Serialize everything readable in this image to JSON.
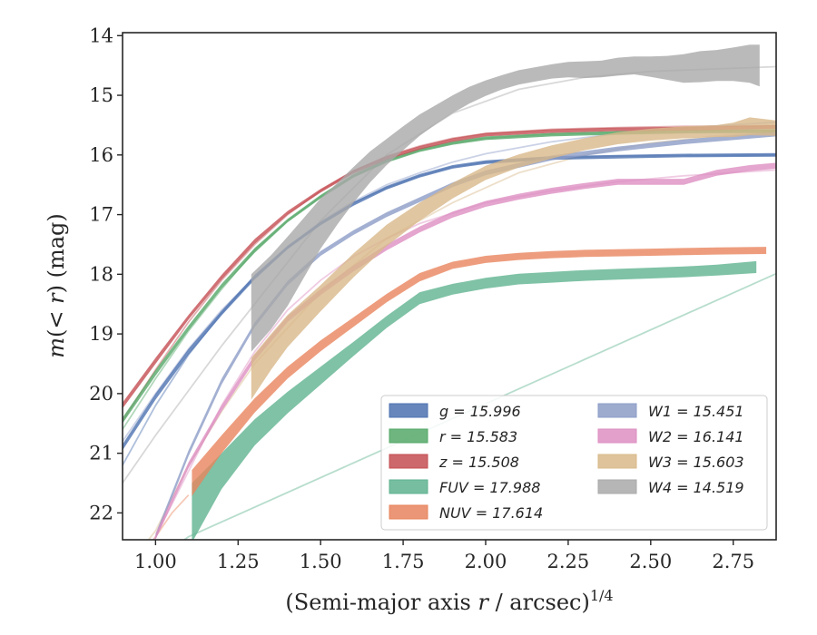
{
  "chart_data": {
    "type": "line",
    "xlabel": "(Semi-major axis r / arcsec)^1/4",
    "ylabel": "m(< r) (mag)",
    "xlim": [
      0.9,
      2.88
    ],
    "ylim": [
      22.45,
      13.95
    ],
    "y_inverted": true,
    "grid": false,
    "legend_placement": "lower-right",
    "x_ticks": [
      "1.00",
      "1.25",
      "1.50",
      "1.75",
      "2.00",
      "2.25",
      "2.50",
      "2.75"
    ],
    "y_ticks": [
      "14",
      "15",
      "16",
      "17",
      "18",
      "19",
      "20",
      "21",
      "22"
    ],
    "series": [
      {
        "name": "g = 15.996",
        "band": "g",
        "total": "15.996",
        "color": "#4c72b0",
        "model_x": [
          0.9,
          1.0,
          1.1,
          1.2,
          1.3,
          1.4,
          1.5,
          1.6,
          1.7,
          1.8,
          1.9,
          2.0,
          2.2,
          2.4,
          2.6,
          2.88
        ],
        "model_y": [
          21.2,
          20.2,
          19.35,
          18.65,
          18.05,
          17.55,
          17.15,
          16.8,
          16.55,
          16.35,
          16.2,
          16.12,
          16.05,
          16.02,
          16.01,
          16.0
        ],
        "x": [
          0.9,
          1.0,
          1.1,
          1.2,
          1.3,
          1.4,
          1.5,
          1.6,
          1.7,
          1.8,
          1.9,
          2.0,
          2.2,
          2.4,
          2.6,
          2.88
        ],
        "y": [
          20.9,
          20.05,
          19.3,
          18.65,
          18.05,
          17.55,
          17.15,
          16.82,
          16.55,
          16.35,
          16.2,
          16.12,
          16.05,
          16.03,
          16.01,
          16.0
        ],
        "err": [
          0.05,
          0.05,
          0.05,
          0.04,
          0.04,
          0.03,
          0.03,
          0.03,
          0.03,
          0.03,
          0.03,
          0.03,
          0.03,
          0.03,
          0.03,
          0.03
        ]
      },
      {
        "name": "r = 15.583",
        "band": "r",
        "total": "15.583",
        "color": "#55a868",
        "model_x": [
          0.9,
          1.0,
          1.1,
          1.2,
          1.3,
          1.4,
          1.5,
          1.6,
          1.7,
          1.8,
          1.9,
          2.0,
          2.2,
          2.4,
          2.6,
          2.88
        ],
        "model_y": [
          20.6,
          19.75,
          18.95,
          18.25,
          17.6,
          17.1,
          16.7,
          16.35,
          16.1,
          15.92,
          15.8,
          15.72,
          15.65,
          15.62,
          15.6,
          15.58
        ],
        "x": [
          0.9,
          1.0,
          1.1,
          1.2,
          1.3,
          1.4,
          1.5,
          1.6,
          1.7,
          1.8,
          1.9,
          2.0,
          2.2,
          2.4,
          2.6,
          2.88
        ],
        "y": [
          20.45,
          19.65,
          18.9,
          18.2,
          17.6,
          17.1,
          16.7,
          16.35,
          16.1,
          15.92,
          15.8,
          15.72,
          15.66,
          15.63,
          15.61,
          15.6
        ],
        "err": [
          0.05,
          0.05,
          0.04,
          0.04,
          0.04,
          0.03,
          0.03,
          0.03,
          0.03,
          0.03,
          0.03,
          0.03,
          0.03,
          0.03,
          0.03,
          0.03
        ]
      },
      {
        "name": "z = 15.508",
        "band": "z",
        "total": "15.508",
        "color": "#c44e52",
        "model_x": [
          0.9,
          1.0,
          1.1,
          1.2,
          1.3,
          1.4,
          1.5,
          1.6,
          1.7,
          1.8,
          1.9,
          2.0,
          2.2,
          2.4,
          2.6,
          2.88
        ],
        "model_y": [
          20.45,
          19.6,
          18.8,
          18.1,
          17.5,
          17.0,
          16.6,
          16.27,
          16.02,
          15.85,
          15.72,
          15.64,
          15.57,
          15.54,
          15.52,
          15.51
        ],
        "x": [
          0.9,
          1.0,
          1.1,
          1.2,
          1.3,
          1.4,
          1.5,
          1.6,
          1.7,
          1.8,
          1.9,
          2.0,
          2.2,
          2.4,
          2.6,
          2.88
        ],
        "y": [
          20.2,
          19.45,
          18.72,
          18.05,
          17.45,
          16.97,
          16.6,
          16.28,
          16.05,
          15.88,
          15.75,
          15.66,
          15.6,
          15.57,
          15.56,
          15.53
        ],
        "err": [
          0.05,
          0.05,
          0.04,
          0.04,
          0.04,
          0.03,
          0.03,
          0.03,
          0.03,
          0.03,
          0.03,
          0.03,
          0.03,
          0.03,
          0.03,
          0.03
        ]
      },
      {
        "name": "FUV = 17.988",
        "band": "FUV",
        "total": "17.988",
        "color": "#5fb390",
        "model_x": [
          1.05,
          1.1,
          2.88
        ],
        "model_y": [
          22.6,
          22.4,
          17.99
        ],
        "x": [
          1.11,
          1.2,
          1.3,
          1.4,
          1.5,
          1.6,
          1.7,
          1.8,
          1.9,
          2.0,
          2.1,
          2.2,
          2.3,
          2.4,
          2.5,
          2.6,
          2.7,
          2.82
        ],
        "y": [
          22.0,
          21.3,
          20.65,
          20.15,
          19.7,
          19.25,
          18.8,
          18.4,
          18.25,
          18.15,
          18.08,
          18.05,
          18.02,
          18.0,
          17.98,
          17.96,
          17.93,
          17.88
        ],
        "err": [
          0.5,
          0.3,
          0.22,
          0.18,
          0.15,
          0.12,
          0.1,
          0.1,
          0.09,
          0.09,
          0.09,
          0.09,
          0.09,
          0.09,
          0.09,
          0.09,
          0.09,
          0.1
        ]
      },
      {
        "name": "NUV = 17.614",
        "band": "NUV",
        "total": "17.614",
        "color": "#e8845e",
        "model_x": [
          0.95,
          1.0,
          1.05,
          1.1
        ],
        "model_y": [
          22.8,
          22.4,
          22.0,
          21.7
        ],
        "x": [
          1.11,
          1.2,
          1.3,
          1.4,
          1.5,
          1.6,
          1.7,
          1.8,
          1.9,
          2.0,
          2.1,
          2.2,
          2.3,
          2.4,
          2.5,
          2.6,
          2.7,
          2.85
        ],
        "y": [
          21.5,
          20.85,
          20.2,
          19.65,
          19.2,
          18.8,
          18.4,
          18.05,
          17.85,
          17.75,
          17.7,
          17.67,
          17.65,
          17.64,
          17.63,
          17.62,
          17.61,
          17.6
        ],
        "err": [
          0.22,
          0.15,
          0.12,
          0.1,
          0.09,
          0.08,
          0.07,
          0.07,
          0.06,
          0.06,
          0.06,
          0.06,
          0.06,
          0.06,
          0.06,
          0.06,
          0.06,
          0.06
        ]
      },
      {
        "name": "W1 = 15.451",
        "band": "W1",
        "total": "15.451",
        "color": "#8c9cc7",
        "model_x": [
          0.9,
          1.0,
          1.1,
          1.2,
          1.3,
          1.4,
          1.5,
          1.6,
          1.7,
          1.8,
          1.9,
          2.0,
          2.2,
          2.4,
          2.6,
          2.88
        ],
        "model_y": [
          20.8,
          20.0,
          19.25,
          18.6,
          18.05,
          17.55,
          17.12,
          16.78,
          16.5,
          16.3,
          16.12,
          15.98,
          15.78,
          15.64,
          15.55,
          15.45
        ],
        "x": [
          1.0,
          1.1,
          1.2,
          1.3,
          1.4,
          1.5,
          1.6,
          1.7,
          1.8,
          1.9,
          2.0,
          2.2,
          2.4,
          2.6,
          2.88
        ],
        "y": [
          22.4,
          21.0,
          19.8,
          18.85,
          18.15,
          17.65,
          17.3,
          17.0,
          16.75,
          16.5,
          16.3,
          16.05,
          15.9,
          15.78,
          15.65
        ],
        "err": [
          0.05,
          0.05,
          0.05,
          0.04,
          0.04,
          0.04,
          0.04,
          0.04,
          0.04,
          0.04,
          0.04,
          0.04,
          0.04,
          0.04,
          0.04
        ]
      },
      {
        "name": "W2 = 16.141",
        "band": "W2",
        "total": "16.141",
        "color": "#dd8fc2",
        "model_x": [
          0.9,
          1.0,
          1.1,
          1.2,
          1.3,
          1.4,
          1.5,
          1.6,
          1.7,
          1.8,
          2.0,
          2.2,
          2.4,
          2.6,
          2.88
        ],
        "model_y": [
          23.2,
          22.4,
          21.3,
          20.2,
          19.3,
          18.6,
          18.1,
          17.7,
          17.4,
          17.15,
          16.8,
          16.6,
          16.45,
          16.35,
          16.25
        ],
        "x": [
          1.0,
          1.1,
          1.2,
          1.3,
          1.4,
          1.5,
          1.6,
          1.7,
          1.8,
          1.9,
          2.0,
          2.1,
          2.2,
          2.3,
          2.4,
          2.5,
          2.6,
          2.7,
          2.8,
          2.88
        ],
        "y": [
          22.4,
          21.2,
          20.25,
          19.4,
          18.75,
          18.3,
          17.9,
          17.55,
          17.25,
          17.0,
          16.82,
          16.7,
          16.6,
          16.52,
          16.45,
          16.45,
          16.45,
          16.3,
          16.22,
          16.18
        ],
        "err": [
          0.05,
          0.05,
          0.05,
          0.05,
          0.05,
          0.05,
          0.05,
          0.05,
          0.05,
          0.05,
          0.05,
          0.05,
          0.05,
          0.05,
          0.05,
          0.05,
          0.05,
          0.05,
          0.05,
          0.05
        ]
      },
      {
        "name": "W3 = 15.603",
        "band": "W3",
        "total": "15.603",
        "color": "#d8b88a",
        "model_x": [
          0.9,
          1.0,
          1.1,
          1.2,
          1.3,
          1.5,
          1.7,
          1.9,
          2.1,
          2.3,
          2.5,
          2.7,
          2.88
        ],
        "model_y": [
          23.0,
          22.3,
          21.2,
          20.3,
          19.5,
          18.3,
          17.4,
          16.8,
          16.3,
          16.0,
          15.8,
          15.68,
          15.6
        ],
        "x": [
          1.29,
          1.35,
          1.4,
          1.5,
          1.6,
          1.7,
          1.8,
          1.9,
          2.0,
          2.1,
          2.2,
          2.3,
          2.4,
          2.5,
          2.6,
          2.7,
          2.75,
          2.8,
          2.88
        ],
        "y": [
          19.75,
          19.3,
          18.95,
          18.4,
          17.85,
          17.35,
          16.95,
          16.6,
          16.3,
          16.1,
          15.95,
          15.82,
          15.72,
          15.66,
          15.62,
          15.6,
          15.58,
          15.52,
          15.55
        ],
        "err": [
          0.35,
          0.3,
          0.27,
          0.22,
          0.2,
          0.18,
          0.15,
          0.13,
          0.12,
          0.11,
          0.11,
          0.1,
          0.1,
          0.1,
          0.1,
          0.1,
          0.12,
          0.15,
          0.13
        ]
      },
      {
        "name": "W4 = 14.519",
        "band": "W4",
        "total": "14.519",
        "color": "#a9a9a9",
        "model_x": [
          0.9,
          1.0,
          1.1,
          1.2,
          1.3,
          1.5,
          1.7,
          1.9,
          2.1,
          2.3,
          2.5,
          2.88
        ],
        "model_y": [
          21.5,
          20.7,
          19.95,
          19.2,
          18.5,
          17.1,
          16.0,
          15.3,
          14.9,
          14.7,
          14.6,
          14.52
        ],
        "x": [
          1.29,
          1.35,
          1.4,
          1.45,
          1.5,
          1.55,
          1.6,
          1.65,
          1.7,
          1.75,
          1.8,
          1.85,
          1.9,
          1.95,
          2.0,
          2.05,
          2.1,
          2.15,
          2.2,
          2.25,
          2.3,
          2.35,
          2.4,
          2.45,
          2.5,
          2.55,
          2.6,
          2.65,
          2.7,
          2.75,
          2.8,
          2.83
        ],
        "y": [
          18.65,
          18.3,
          17.95,
          17.55,
          17.15,
          16.82,
          16.5,
          16.2,
          15.95,
          15.72,
          15.5,
          15.32,
          15.15,
          15.0,
          14.88,
          14.78,
          14.7,
          14.65,
          14.6,
          14.57,
          14.57,
          14.56,
          14.52,
          14.5,
          14.52,
          14.54,
          14.55,
          14.52,
          14.5,
          14.48,
          14.47,
          14.5
        ],
        "err": [
          0.65,
          0.62,
          0.58,
          0.5,
          0.42,
          0.35,
          0.3,
          0.26,
          0.22,
          0.2,
          0.18,
          0.16,
          0.15,
          0.14,
          0.13,
          0.12,
          0.12,
          0.12,
          0.12,
          0.13,
          0.14,
          0.14,
          0.15,
          0.15,
          0.17,
          0.2,
          0.24,
          0.26,
          0.26,
          0.28,
          0.32,
          0.35
        ]
      }
    ]
  }
}
